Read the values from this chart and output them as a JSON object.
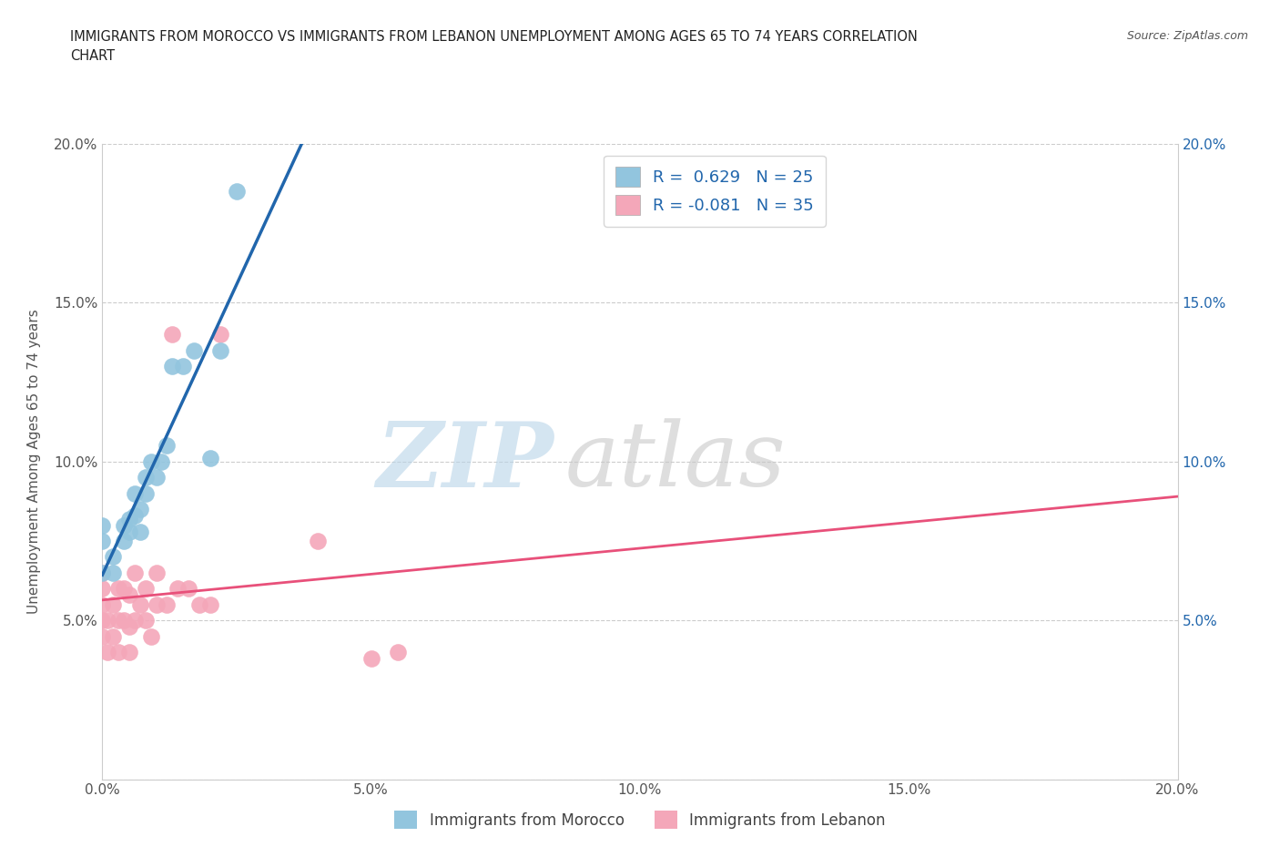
{
  "title_line1": "IMMIGRANTS FROM MOROCCO VS IMMIGRANTS FROM LEBANON UNEMPLOYMENT AMONG AGES 65 TO 74 YEARS CORRELATION",
  "title_line2": "CHART",
  "source_text": "Source: ZipAtlas.com",
  "ylabel": "Unemployment Among Ages 65 to 74 years",
  "xlim": [
    0.0,
    0.2
  ],
  "ylim": [
    0.0,
    0.2
  ],
  "x_ticks": [
    0.0,
    0.05,
    0.1,
    0.15,
    0.2
  ],
  "y_ticks": [
    0.0,
    0.05,
    0.1,
    0.15,
    0.2
  ],
  "x_tick_labels": [
    "0.0%",
    "5.0%",
    "10.0%",
    "15.0%",
    "20.0%"
  ],
  "y_tick_labels_left": [
    "",
    "5.0%",
    "10.0%",
    "15.0%",
    "20.0%"
  ],
  "y_tick_labels_right": [
    "5.0%",
    "10.0%",
    "15.0%",
    "20.0%"
  ],
  "morocco_color": "#92c5de",
  "lebanon_color": "#f4a7b9",
  "trendline_morocco_color": "#2166ac",
  "trendline_lebanon_color": "#e8507a",
  "dashed_color": "#b0c4de",
  "legend_label_morocco": "R =  0.629   N = 25",
  "legend_label_lebanon": "R = -0.081   N = 35",
  "bottom_legend_morocco": "Immigrants from Morocco",
  "bottom_legend_lebanon": "Immigrants from Lebanon",
  "morocco_x": [
    0.0,
    0.0,
    0.0,
    0.002,
    0.002,
    0.004,
    0.004,
    0.005,
    0.005,
    0.006,
    0.006,
    0.007,
    0.007,
    0.008,
    0.008,
    0.009,
    0.01,
    0.011,
    0.012,
    0.013,
    0.015,
    0.017,
    0.02,
    0.022,
    0.025
  ],
  "morocco_y": [
    0.065,
    0.075,
    0.08,
    0.065,
    0.07,
    0.075,
    0.08,
    0.078,
    0.082,
    0.083,
    0.09,
    0.078,
    0.085,
    0.09,
    0.095,
    0.1,
    0.095,
    0.1,
    0.105,
    0.13,
    0.13,
    0.135,
    0.101,
    0.135,
    0.185
  ],
  "lebanon_x": [
    0.0,
    0.0,
    0.0,
    0.0,
    0.0,
    0.001,
    0.001,
    0.002,
    0.002,
    0.003,
    0.003,
    0.003,
    0.004,
    0.004,
    0.005,
    0.005,
    0.005,
    0.006,
    0.006,
    0.007,
    0.008,
    0.008,
    0.009,
    0.01,
    0.01,
    0.012,
    0.013,
    0.014,
    0.016,
    0.018,
    0.02,
    0.022,
    0.04,
    0.05,
    0.055
  ],
  "lebanon_y": [
    0.045,
    0.05,
    0.055,
    0.06,
    0.065,
    0.04,
    0.05,
    0.045,
    0.055,
    0.04,
    0.05,
    0.06,
    0.05,
    0.06,
    0.04,
    0.048,
    0.058,
    0.05,
    0.065,
    0.055,
    0.05,
    0.06,
    0.045,
    0.055,
    0.065,
    0.055,
    0.14,
    0.06,
    0.06,
    0.055,
    0.055,
    0.14,
    0.075,
    0.038,
    0.04
  ]
}
